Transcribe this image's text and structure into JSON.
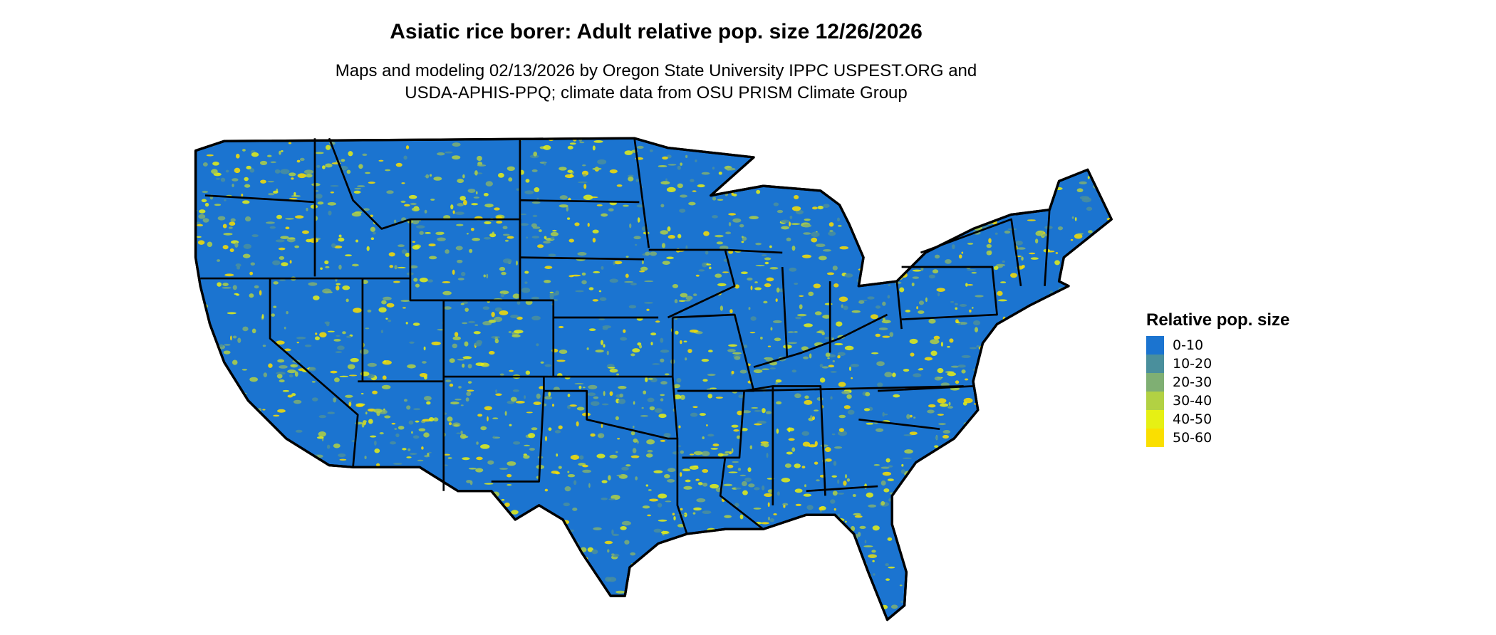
{
  "title": "Asiatic rice borer: Adult relative pop. size 12/26/2026",
  "subtitle_line1": "Maps and modeling 02/13/2026 by Oregon State University IPPC USPEST.ORG and",
  "subtitle_line2": "USDA-APHIS-PPQ; climate data from OSU PRISM Climate Group",
  "legend": {
    "title": "Relative pop. size",
    "items": [
      {
        "label": "0-10",
        "color": "#1B74D0"
      },
      {
        "label": "10-20",
        "color": "#4A8F9C"
      },
      {
        "label": "20-30",
        "color": "#7FAF73"
      },
      {
        "label": "30-40",
        "color": "#B2D143"
      },
      {
        "label": "40-50",
        "color": "#E6F014"
      },
      {
        "label": "50-60",
        "color": "#FADF00"
      }
    ]
  },
  "map": {
    "region": "Contiguous United States",
    "borders_color": "#000000",
    "base_color": "#1B74D0"
  }
}
